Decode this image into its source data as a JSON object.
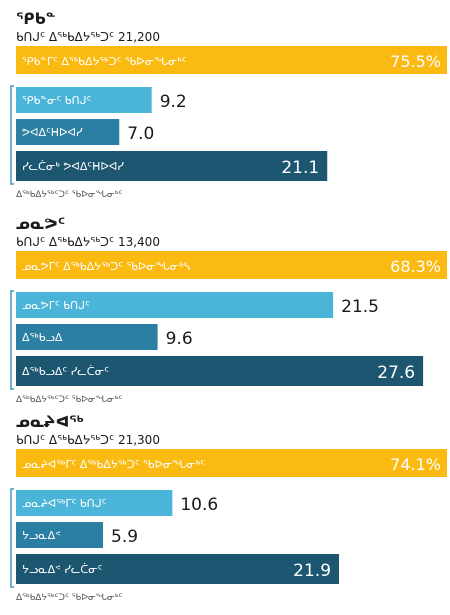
{
  "colors": {
    "gold": "#FBBA12",
    "light_blue": "#4BB5D9",
    "mid_blue": "#2A7FA3",
    "dark_blue": "#1C5670",
    "bracket": "#3E9BC0",
    "text_dark": "#1a1a1a",
    "text_light": "#ffffff",
    "caption": "#555555"
  },
  "chart_data": [
    {
      "type": "bar",
      "title": "ᕿᑲᓐ",
      "population_label": "ᑲᑎᒍᑦ ᐃᖅᑲᐃᔭᖅᑐᑦ",
      "population_value": "21,200",
      "rate": {
        "label": "ᕿᑲᓐᒥᑦ ᐃᖅᑲᐃᔭᖅᑐᑦ ᖃᐅᓂᖓᓂᒃᑦ",
        "value": 75.5,
        "display": "75.5%",
        "color": "gold"
      },
      "bars": [
        {
          "label": "ᕿᑲᓐᓂᑦ ᑲᑎᒍᑦ",
          "value": 9.2,
          "display": "9.2",
          "color": "light_blue"
        },
        {
          "label": "ᕗᐊᐃᑦᕼᐅᐊᓯ",
          "value": 7.0,
          "display": "7.0",
          "color": "mid_blue"
        },
        {
          "label": "ᓯᓚᑖᓂᒃ ᕗᐊᐃᑦᕼᐅᐊᓯ",
          "value": 21.1,
          "display": "21.1",
          "color": "dark_blue"
        }
      ],
      "caption": "ᐃᖅᑲᐃᔭᖅᑦᑐᑦ ᖃᐅᓂᖓᓂᒃᑦ",
      "xlim": [
        0,
        30
      ]
    },
    {
      "type": "bar",
      "title": "ᓄᓇᕗᑦ",
      "population_label": "ᑲᑎᒍᑦ ᐃᖅᑲᐃᔭᖅᑐᑦ",
      "population_value": "13,400",
      "rate": {
        "label": "ᓄᓇᕗᒥᑦ ᐃᖅᑲᐃᔭᖅᑐᑦ ᖃᐅᓂᖓᓂᒃᓴ",
        "value": 68.3,
        "display": "68.3%",
        "color": "gold"
      },
      "bars": [
        {
          "label": "ᓄᓇᕗᒥᑦ ᑲᑎᒍᑦ",
          "value": 21.5,
          "display": "21.5",
          "color": "light_blue"
        },
        {
          "label": "ᐃᖅᑲᓗᐃ",
          "value": 9.6,
          "display": "9.6",
          "color": "mid_blue"
        },
        {
          "label": "ᐃᖅᑲᓗᐃᑦ ᓯᓚᑖᓂᑦ",
          "value": 27.6,
          "display": "27.6",
          "color": "dark_blue"
        }
      ],
      "caption": "ᐃᖅᑲᐃᔭᖅᑦᑐᑦ ᖃᐅᓂᖓᓂᒃᑦ",
      "xlim": [
        0,
        30
      ]
    },
    {
      "type": "bar",
      "title": "ᓄᓇᖨᐊᖅ",
      "population_label": "ᑲᑎᒍᑦ ᐃᖅᑲᐃᔭᖅᑐᑦ",
      "population_value": "21,300",
      "rate": {
        "label": "ᓄᓇᖨᐊᖅᒥᑦ ᐃᖅᑲᐃᔭᖅᑐᑦ ᖃᐅᓂᖓᓂᒃᑦ",
        "value": 74.1,
        "display": "74.1%",
        "color": "gold"
      },
      "bars": [
        {
          "label": "ᓄᓇᖨᐊᖅᒥᑦ ᑲᑎᒍᑦ",
          "value": 10.6,
          "display": "10.6",
          "color": "light_blue"
        },
        {
          "label": "ᔭᓗᓇᐃᕝ",
          "value": 5.9,
          "display": "5.9",
          "color": "mid_blue"
        },
        {
          "label": "ᔭᓗᓇᐃᕝ ᓯᓚᑖᓂᑦ",
          "value": 21.9,
          "display": "21.9",
          "color": "dark_blue"
        }
      ],
      "caption": "ᐃᖅᑲᐃᔭᖅᑦᑐᑦ ᖃᐅᓂᖓᓂᒃᑦ",
      "xlim": [
        0,
        30
      ]
    }
  ]
}
